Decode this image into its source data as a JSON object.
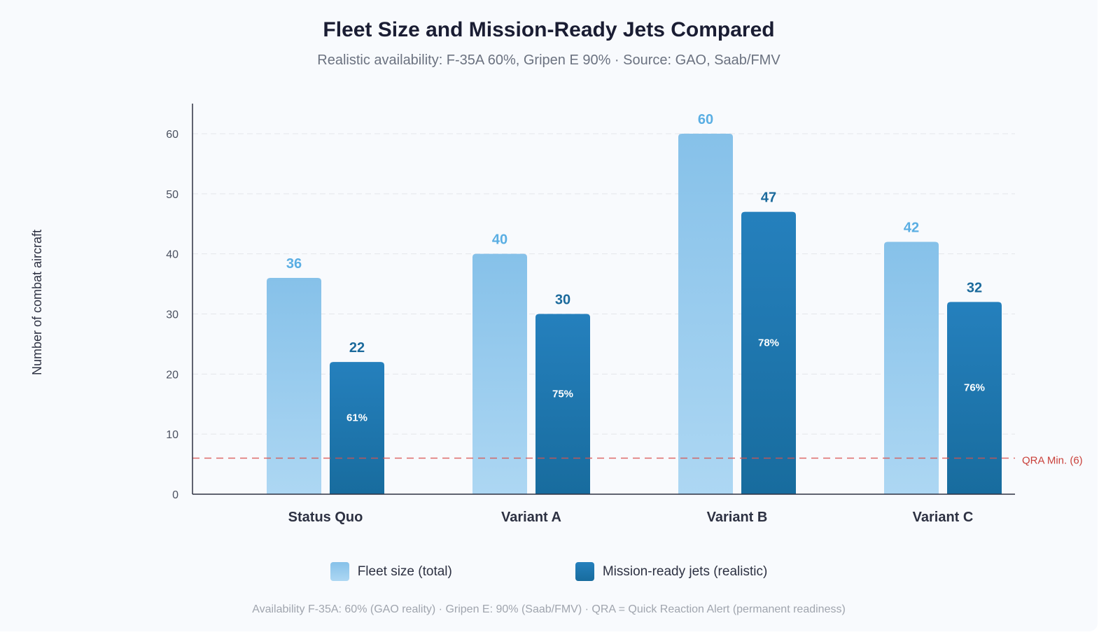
{
  "chart_data": {
    "type": "bar",
    "title": "Fleet Size and Mission-Ready Jets Compared",
    "subtitle": "Realistic availability: F-35A 60%, Gripen E 90% · Source: GAO, Saab/FMV",
    "ylabel": "Number of combat aircraft",
    "xlabel": "",
    "ylim": [
      0,
      65
    ],
    "yticks": [
      0,
      10,
      20,
      30,
      40,
      50,
      60
    ],
    "grid": true,
    "categories": [
      "Status Quo",
      "Variant A",
      "Variant B",
      "Variant C"
    ],
    "series": [
      {
        "name": "Fleet size (total)",
        "values": [
          36,
          40,
          60,
          42
        ],
        "color": "#8ac3ea"
      },
      {
        "name": "Mission-ready jets (realistic)",
        "values": [
          22,
          30,
          47,
          32
        ],
        "color": "#1f77b0",
        "inner_labels": [
          "61%",
          "75%",
          "78%",
          "76%"
        ]
      }
    ],
    "reference_line": {
      "value": 6,
      "label": "QRA Min. (6)",
      "color": "#d9534f"
    },
    "legend_placement": "bottom",
    "footnote": "Availability F-35A: 60% (GAO reality) · Gripen E: 90% (Saab/FMV) · QRA = Quick Reaction Alert (permanent readiness)"
  }
}
